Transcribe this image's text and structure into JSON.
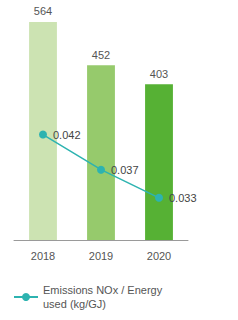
{
  "chart_data": {
    "type": "bar",
    "categories": [
      "2018",
      "2019",
      "2020"
    ],
    "series": [
      {
        "type": "bar",
        "colors": [
          "#cce3b2",
          "#96ca6c",
          "#56b134"
        ],
        "values": [
          564,
          452,
          403
        ]
      },
      {
        "type": "line",
        "name": "Emissions NOx / Energy used (kg/GJ)",
        "color": "#2db3b0",
        "marker": "circle",
        "line_style": "solid",
        "axis": "y2",
        "values": [
          0.042,
          0.037,
          0.033
        ]
      }
    ],
    "ylim": [
      0,
      600
    ],
    "y2lim": [
      0.027,
      0.06
    ],
    "data_labels": true,
    "tick_labels": "x",
    "grid": false,
    "legend": "bottom"
  }
}
